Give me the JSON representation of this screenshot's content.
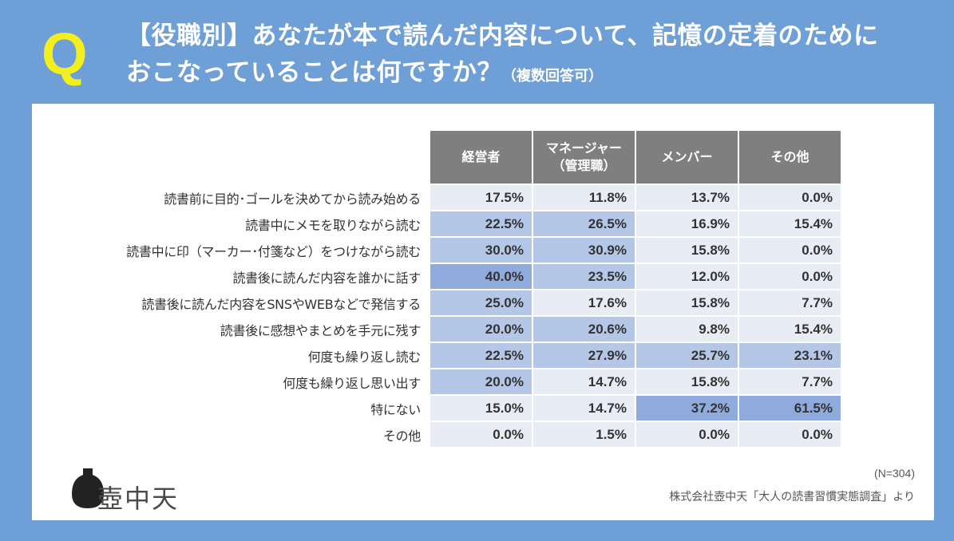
{
  "header": {
    "q_mark": "Q",
    "title_line1": "【役職別】あなたが本で読んだ内容について、記憶の定着のために",
    "title_line2": "おこなっていることは何ですか？",
    "title_note": "（複数回答可）"
  },
  "footer": {
    "logo_text": "壺中天",
    "sample_size": "(N=304)",
    "source": "株式会社壺中天「大人の読書習慣実態調査」より"
  },
  "chart_data": {
    "type": "table",
    "columns": [
      "経営者",
      "マネージャー\n（管理職）",
      "メンバー",
      "その他"
    ],
    "rows": [
      {
        "label": "読書前に目的･ゴールを決めてから読み始める",
        "values": [
          "17.5%",
          "11.8%",
          "13.7%",
          "0.0%"
        ]
      },
      {
        "label": "読書中にメモを取りながら読む",
        "values": [
          "22.5%",
          "26.5%",
          "16.9%",
          "15.4%"
        ]
      },
      {
        "label": "読書中に印（マーカー･付箋など）をつけながら読む",
        "values": [
          "30.0%",
          "30.9%",
          "15.8%",
          "0.0%"
        ]
      },
      {
        "label": "読書後に読んだ内容を誰かに話す",
        "values": [
          "40.0%",
          "23.5%",
          "12.0%",
          "0.0%"
        ]
      },
      {
        "label": "読書後に読んだ内容をSNSやWEBなどで発信する",
        "values": [
          "25.0%",
          "17.6%",
          "15.8%",
          "7.7%"
        ]
      },
      {
        "label": "読書後に感想やまとめを手元に残す",
        "values": [
          "20.0%",
          "20.6%",
          "9.8%",
          "15.4%"
        ]
      },
      {
        "label": "何度も繰り返し読む",
        "values": [
          "22.5%",
          "27.9%",
          "25.7%",
          "23.1%"
        ]
      },
      {
        "label": "何度も繰り返し思い出す",
        "values": [
          "20.0%",
          "14.7%",
          "15.8%",
          "7.7%"
        ]
      },
      {
        "label": "特にない",
        "values": [
          "15.0%",
          "14.7%",
          "37.2%",
          "61.5%"
        ]
      },
      {
        "label": "その他",
        "values": [
          "0.0%",
          "1.5%",
          "0.0%",
          "0.0%"
        ]
      }
    ],
    "highlight_colors": {
      "strong": "#8faadc",
      "medium": "#b4c7e7",
      "base": "#e8ecf5"
    }
  }
}
